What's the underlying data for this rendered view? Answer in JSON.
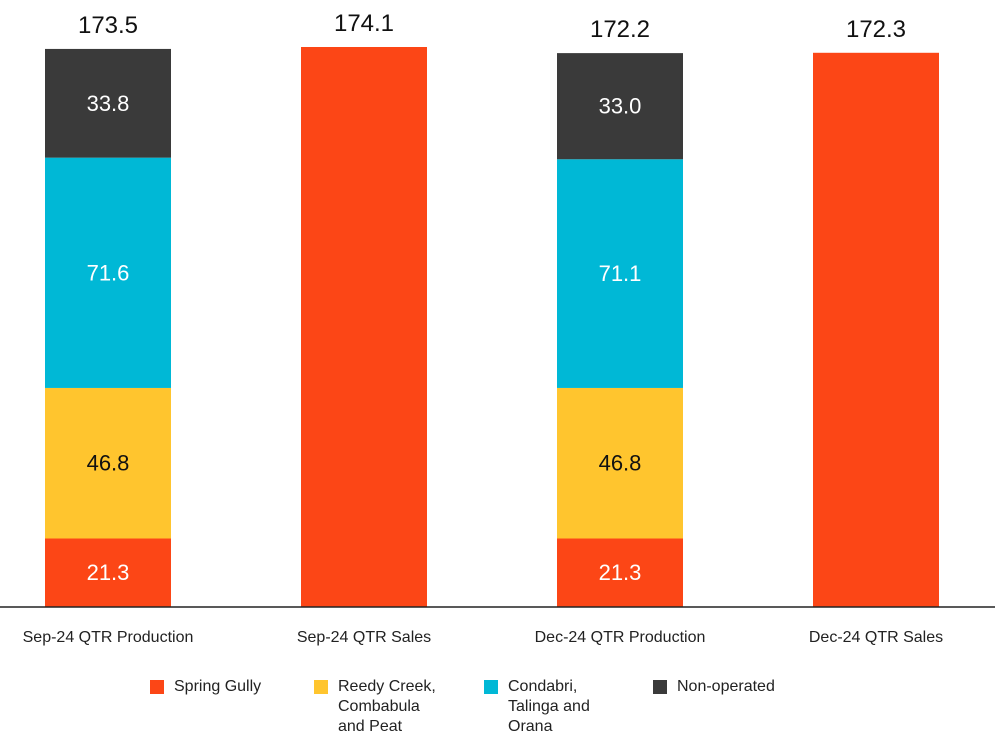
{
  "chart_data": {
    "type": "bar",
    "stacked": true,
    "categories": [
      "Sep-24 QTR Production",
      "Sep-24 QTR Sales",
      "Dec-24 QTR Production",
      "Dec-24 QTR Sales"
    ],
    "series": [
      {
        "name": "Spring Gully",
        "color": "#FC4616",
        "values": [
          21.3,
          174.1,
          21.3,
          172.3
        ],
        "labels": [
          "21.3",
          "",
          "21.3",
          ""
        ],
        "label_color": "#ffffff"
      },
      {
        "name": "Reedy Creek,\nCombabula\nand Peat",
        "color": "#FFC52E",
        "values": [
          46.8,
          0,
          46.8,
          0
        ],
        "labels": [
          "46.8",
          "",
          "46.8",
          ""
        ],
        "label_color": "#111111"
      },
      {
        "name": "Condabri,\nTalinga and\nOrana",
        "color": "#00B8D6",
        "values": [
          71.6,
          0,
          71.1,
          0
        ],
        "labels": [
          "71.6",
          "",
          "71.1",
          ""
        ],
        "label_color": "#ffffff"
      },
      {
        "name": "Non-operated",
        "color": "#3A3A3A",
        "values": [
          33.8,
          0,
          33.0,
          0
        ],
        "labels": [
          "33.8",
          "",
          "33.0",
          ""
        ],
        "label_color": "#ffffff"
      }
    ],
    "totals": [
      "173.5",
      "174.1",
      "172.2",
      "172.3"
    ],
    "ylim": [
      0,
      174.1
    ],
    "grid": false,
    "legend_position": "bottom"
  }
}
